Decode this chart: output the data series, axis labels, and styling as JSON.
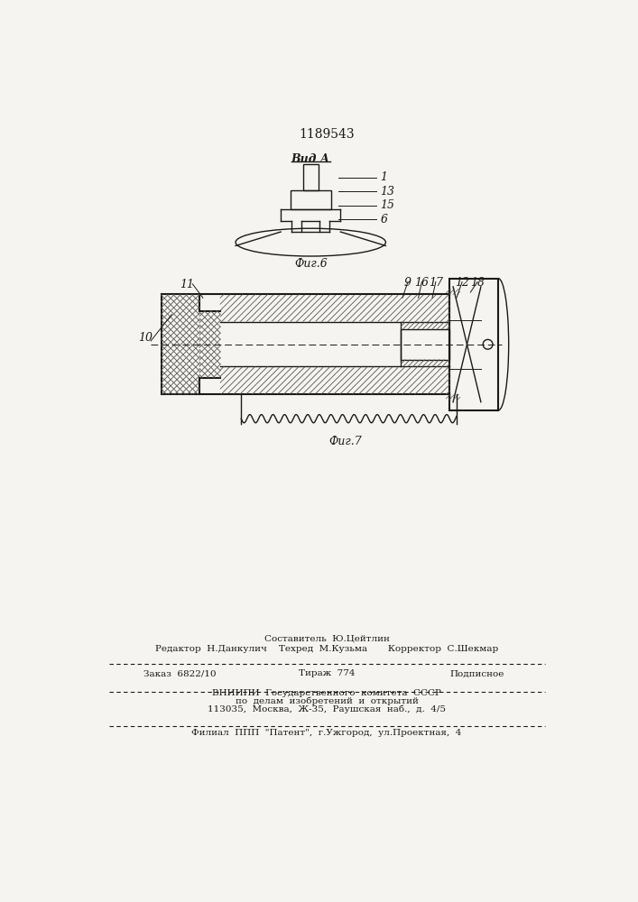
{
  "patent_number": "1189543",
  "fig6_label": "Фиг.6",
  "fig7_label": "Фиг.7",
  "vid_a_label": "Вид А",
  "bg_color": "#f5f4f0",
  "line_color": "#1a1a1a",
  "footer_line1": "Составитель  Ю.Цейтлин",
  "footer_line2": "Редактор  Н.Данкулич    Техред  М.Кузьма       Корректор  С.Шекмар",
  "footer_line3a": "Заказ  6822/10",
  "footer_line3b": "Тираж  774",
  "footer_line3c": "Подписное",
  "footer_line4": "ВНИИПИ  Государственного  комитета  СССР",
  "footer_line5": "по  делам  изобретений  и  открытий",
  "footer_line6": "113035,  Москва,  Ж-35,  Раушская  наб.,  д.  4/5",
  "footer_line7": "Филиал  ППП  \"Патент\",  г.Ужгород,  ул.Проектная,  4"
}
